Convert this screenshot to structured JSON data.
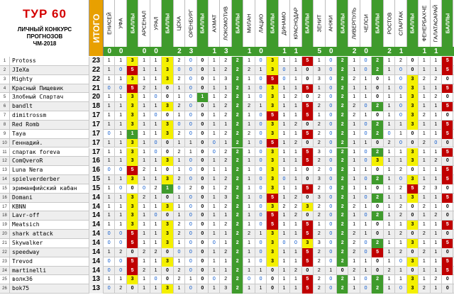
{
  "title": {
    "line1": "ТУР 60",
    "line2": "ЛИЧНЫЙ КОНКУРС",
    "line3": "ПРОГНОЗОВ",
    "line4": "ЧМ-2018"
  },
  "total_header": "ИТОГО",
  "columns": [
    {
      "label": "ЕНИСЕЙ",
      "type": "team"
    },
    {
      "label": "УФА",
      "type": "team"
    },
    {
      "label": "БАЛЛЫ",
      "type": "points"
    },
    {
      "label": "АРСЕНАЛ",
      "type": "team"
    },
    {
      "label": "УРАЛ",
      "type": "team"
    },
    {
      "label": "БАЛЛЫ",
      "type": "points"
    },
    {
      "label": "ЦСКА",
      "type": "team"
    },
    {
      "label": "ОРЕНБУРГ",
      "type": "team"
    },
    {
      "label": "БАЛЛЫ",
      "type": "points"
    },
    {
      "label": "АХМАТ",
      "type": "team"
    },
    {
      "label": "ЛОКОМОТИВ",
      "type": "team"
    },
    {
      "label": "БАЛЛЫ",
      "type": "points"
    },
    {
      "label": "МИЛАН",
      "type": "team"
    },
    {
      "label": "ЛАЦИО",
      "type": "team"
    },
    {
      "label": "БАЛЛЫ",
      "type": "points"
    },
    {
      "label": "ДИНАМО",
      "type": "team"
    },
    {
      "label": "КРАСНОДАР",
      "type": "team"
    },
    {
      "label": "БАЛЛЫ",
      "type": "points"
    },
    {
      "label": "ЗЕНИТ",
      "type": "team"
    },
    {
      "label": "АНЖИ",
      "type": "team"
    },
    {
      "label": "БАЛЛЫ",
      "type": "points"
    },
    {
      "label": "ЛИВЕРПУЛЬ",
      "type": "team"
    },
    {
      "label": "ЧЕЛСИ",
      "type": "team"
    },
    {
      "label": "БАЛЛЫ",
      "type": "points"
    },
    {
      "label": "РОСТОВ",
      "type": "team"
    },
    {
      "label": "СПАРТАК",
      "type": "team"
    },
    {
      "label": "БАЛЛЫ",
      "type": "points"
    },
    {
      "label": "ФЕНЕРБАХЧЕ",
      "type": "team"
    },
    {
      "label": "ГАЛАТАСАРАЙ",
      "type": "team"
    },
    {
      "label": "БАЛЛЫ",
      "type": "points"
    }
  ],
  "results": [
    "0",
    "0",
    "",
    "0",
    "0",
    "",
    "2",
    "3",
    "",
    "1",
    "3",
    "",
    "1",
    "0",
    "",
    "1",
    "1",
    "",
    "5",
    "0",
    "",
    "2",
    "0",
    "",
    "2",
    "1",
    "",
    "1",
    "1",
    ""
  ],
  "rows": [
    {
      "n": "1",
      "name": "Protoss",
      "total": "23",
      "cells": [
        "1",
        "1",
        "3",
        "1",
        "1",
        "3",
        "2",
        "0",
        "0",
        "1",
        "2",
        "2",
        "1",
        "0",
        "3",
        "1",
        "1",
        "5",
        "1",
        "0",
        "2",
        "1",
        "0",
        "2",
        "1",
        "2",
        "0",
        "1",
        "1",
        "5"
      ]
    },
    {
      "n": "2",
      "name": "JIeXa",
      "total": "22",
      "cells": [
        "1",
        "0",
        "5",
        "1",
        "1",
        "3",
        "0",
        "0",
        "0",
        "1",
        "2",
        "2",
        "2",
        "1",
        "3",
        "0",
        "1",
        "0",
        "3",
        "0",
        "2",
        "1",
        "0",
        "2",
        "1",
        "0",
        "0",
        "1",
        "1",
        "5"
      ]
    },
    {
      "n": "3",
      "name": "Mighty",
      "total": "22",
      "cells": [
        "1",
        "1",
        "3",
        "1",
        "1",
        "3",
        "2",
        "0",
        "0",
        "1",
        "3",
        "2",
        "1",
        "0",
        "5",
        "0",
        "1",
        "0",
        "3",
        "0",
        "2",
        "2",
        "1",
        "0",
        "1",
        "0",
        "3",
        "2",
        "2",
        "0"
      ]
    },
    {
      "n": "4",
      "name": "Красный Пищевик",
      "total": "21",
      "cells": [
        "0",
        "0",
        "5",
        "2",
        "1",
        "0",
        "1",
        "0",
        "0",
        "1",
        "1",
        "2",
        "1",
        "0",
        "3",
        "1",
        "1",
        "5",
        "1",
        "0",
        "2",
        "1",
        "1",
        "0",
        "1",
        "0",
        "3",
        "1",
        "1",
        "5"
      ]
    },
    {
      "n": "5",
      "name": "Злобный Спартач",
      "total": "20",
      "cells": [
        "1",
        "1",
        "3",
        "1",
        "0",
        "0",
        "1",
        "0",
        "1",
        "1",
        "2",
        "2",
        "1",
        "0",
        "3",
        "1",
        "2",
        "0",
        "2",
        "0",
        "2",
        "1",
        "1",
        "0",
        "1",
        "1",
        "3",
        "1",
        "2",
        "0"
      ]
    },
    {
      "n": "6",
      "name": "bandlt",
      "total": "18",
      "cells": [
        "1",
        "1",
        "3",
        "1",
        "1",
        "3",
        "2",
        "0",
        "0",
        "1",
        "2",
        "2",
        "2",
        "1",
        "3",
        "1",
        "1",
        "5",
        "2",
        "0",
        "2",
        "2",
        "0",
        "2",
        "1",
        "0",
        "3",
        "1",
        "1",
        "5"
      ]
    },
    {
      "n": "7",
      "name": "dimitrossm",
      "total": "17",
      "cells": [
        "1",
        "1",
        "3",
        "1",
        "0",
        "0",
        "1",
        "0",
        "0",
        "1",
        "2",
        "2",
        "1",
        "0",
        "5",
        "1",
        "1",
        "5",
        "1",
        "0",
        "2",
        "2",
        "1",
        "0",
        "1",
        "0",
        "3",
        "2",
        "1",
        "0"
      ]
    },
    {
      "n": "8",
      "name": "Red Romb",
      "total": "17",
      "cells": [
        "1",
        "1",
        "3",
        "1",
        "1",
        "3",
        "0",
        "0",
        "0",
        "1",
        "1",
        "2",
        "1",
        "0",
        "3",
        "1",
        "2",
        "0",
        "2",
        "0",
        "2",
        "1",
        "0",
        "2",
        "1",
        "1",
        "3",
        "1",
        "1",
        "5"
      ]
    },
    {
      "n": "9",
      "name": "Taya",
      "total": "17",
      "cells": [
        "0",
        "1",
        "1",
        "1",
        "1",
        "3",
        "2",
        "0",
        "0",
        "1",
        "2",
        "2",
        "2",
        "0",
        "3",
        "1",
        "1",
        "5",
        "2",
        "0",
        "2",
        "1",
        "0",
        "2",
        "0",
        "1",
        "0",
        "1",
        "1",
        "5"
      ]
    },
    {
      "n": "10",
      "name": "Геннадий.",
      "total": "17",
      "cells": [
        "1",
        "1",
        "3",
        "1",
        "0",
        "0",
        "1",
        "1",
        "0",
        "0",
        "1",
        "2",
        "1",
        "0",
        "5",
        "1",
        "2",
        "0",
        "2",
        "0",
        "2",
        "1",
        "1",
        "0",
        "2",
        "0",
        "0",
        "2",
        "0",
        "0"
      ]
    },
    {
      "n": "11",
      "name": "спартак foreva",
      "total": "17",
      "cells": [
        "1",
        "1",
        "3",
        "1",
        "0",
        "0",
        "2",
        "1",
        "0",
        "0",
        "2",
        "2",
        "1",
        "0",
        "3",
        "1",
        "1",
        "5",
        "3",
        "0",
        "2",
        "1",
        "0",
        "2",
        "1",
        "1",
        "3",
        "1",
        "1",
        "5"
      ]
    },
    {
      "n": "12",
      "name": "ComQveroR",
      "total": "16",
      "cells": [
        "1",
        "1",
        "3",
        "1",
        "1",
        "3",
        "1",
        "0",
        "0",
        "1",
        "2",
        "2",
        "1",
        "0",
        "3",
        "1",
        "1",
        "5",
        "2",
        "0",
        "2",
        "1",
        "0",
        "3",
        "1",
        "1",
        "3",
        "1",
        "2",
        "0"
      ]
    },
    {
      "n": "13",
      "name": "Luna Nera",
      "total": "16",
      "cells": [
        "0",
        "0",
        "5",
        "2",
        "1",
        "0",
        "1",
        "0",
        "0",
        "1",
        "1",
        "2",
        "1",
        "0",
        "3",
        "1",
        "1",
        "0",
        "2",
        "0",
        "2",
        "1",
        "1",
        "0",
        "1",
        "2",
        "0",
        "1",
        "1",
        "5"
      ]
    },
    {
      "n": "14",
      "name": "spielverderber",
      "total": "15",
      "cells": [
        "1",
        "1",
        "3",
        "1",
        "1",
        "3",
        "2",
        "0",
        "0",
        "1",
        "2",
        "2",
        "1",
        "0",
        "3",
        "0",
        "1",
        "0",
        "3",
        "0",
        "2",
        "1",
        "0",
        "2",
        "1",
        "0",
        "3",
        "1",
        "1",
        "5"
      ]
    },
    {
      "n": "15",
      "name": "эриманфийский кабан",
      "total": "15",
      "cells": [
        "1",
        "0",
        "0",
        "0",
        "2",
        "1",
        "0",
        "2",
        "0",
        "1",
        "2",
        "2",
        "1",
        "0",
        "3",
        "1",
        "1",
        "5",
        "2",
        "0",
        "2",
        "1",
        "1",
        "0",
        "1",
        "2",
        "5",
        "2",
        "3",
        "0"
      ]
    },
    {
      "n": "16",
      "name": "Domani",
      "total": "14",
      "cells": [
        "1",
        "1",
        "3",
        "2",
        "1",
        "0",
        "1",
        "0",
        "0",
        "1",
        "3",
        "2",
        "1",
        "0",
        "5",
        "1",
        "2",
        "0",
        "3",
        "0",
        "2",
        "1",
        "0",
        "2",
        "1",
        "1",
        "3",
        "1",
        "1",
        "5"
      ]
    },
    {
      "n": "17",
      "name": "KBNN",
      "total": "14",
      "cells": [
        "1",
        "1",
        "3",
        "1",
        "1",
        "3",
        "1",
        "0",
        "0",
        "1",
        "2",
        "2",
        "1",
        "0",
        "3",
        "2",
        "2",
        "3",
        "2",
        "0",
        "2",
        "2",
        "1",
        "0",
        "1",
        "2",
        "0",
        "2",
        "1",
        "0"
      ]
    },
    {
      "n": "18",
      "name": "Lavr-off",
      "total": "14",
      "cells": [
        "1",
        "1",
        "3",
        "1",
        "0",
        "0",
        "1",
        "0",
        "0",
        "1",
        "1",
        "2",
        "1",
        "0",
        "5",
        "1",
        "2",
        "0",
        "2",
        "0",
        "2",
        "1",
        "0",
        "2",
        "1",
        "2",
        "0",
        "1",
        "2",
        "0"
      ]
    },
    {
      "n": "19",
      "name": "Meatsich",
      "total": "14",
      "cells": [
        "1",
        "1",
        "3",
        "1",
        "1",
        "3",
        "2",
        "0",
        "0",
        "1",
        "2",
        "2",
        "1",
        "0",
        "5",
        "1",
        "1",
        "5",
        "1",
        "0",
        "2",
        "1",
        "1",
        "0",
        "1",
        "1",
        "3",
        "1",
        "1",
        "5"
      ]
    },
    {
      "n": "20",
      "name": "shark attack",
      "total": "14",
      "cells": [
        "0",
        "0",
        "5",
        "1",
        "1",
        "3",
        "2",
        "0",
        "0",
        "1",
        "1",
        "2",
        "2",
        "1",
        "3",
        "1",
        "1",
        "5",
        "2",
        "0",
        "2",
        "2",
        "1",
        "0",
        "1",
        "2",
        "0",
        "2",
        "1",
        "0"
      ]
    },
    {
      "n": "21",
      "name": "Skywalker",
      "total": "14",
      "cells": [
        "0",
        "0",
        "5",
        "1",
        "1",
        "3",
        "1",
        "0",
        "0",
        "0",
        "1",
        "2",
        "1",
        "0",
        "3",
        "0",
        "0",
        "3",
        "3",
        "0",
        "2",
        "2",
        "0",
        "2",
        "1",
        "1",
        "3",
        "1",
        "1",
        "5"
      ]
    },
    {
      "n": "22",
      "name": "speedway",
      "total": "14",
      "cells": [
        "1",
        "2",
        "0",
        "2",
        "2",
        "0",
        "0",
        "0",
        "0",
        "1",
        "2",
        "2",
        "1",
        "0",
        "3",
        "1",
        "1",
        "5",
        "2",
        "0",
        "2",
        "2",
        "0",
        "5",
        "1",
        "2",
        "0",
        "2",
        "1",
        "0"
      ]
    },
    {
      "n": "23",
      "name": "Trevod",
      "total": "14",
      "cells": [
        "0",
        "0",
        "5",
        "1",
        "1",
        "3",
        "1",
        "0",
        "0",
        "1",
        "1",
        "2",
        "1",
        "0",
        "3",
        "1",
        "1",
        "5",
        "2",
        "0",
        "2",
        "1",
        "1",
        "0",
        "1",
        "0",
        "3",
        "1",
        "1",
        "5"
      ]
    },
    {
      "n": "24",
      "name": "martinelli",
      "total": "14",
      "cells": [
        "0",
        "0",
        "5",
        "2",
        "1",
        "0",
        "2",
        "0",
        "0",
        "1",
        "1",
        "2",
        "1",
        "1",
        "0",
        "1",
        "2",
        "0",
        "2",
        "1",
        "0",
        "2",
        "1",
        "0",
        "2",
        "1",
        "0",
        "1",
        "1",
        "5"
      ]
    },
    {
      "n": "25",
      "name": "волк36",
      "total": "13",
      "cells": [
        "1",
        "1",
        "3",
        "1",
        "0",
        "0",
        "2",
        "1",
        "0",
        "0",
        "2",
        "2",
        "0",
        "0",
        "0",
        "1",
        "1",
        "5",
        "2",
        "0",
        "2",
        "1",
        "0",
        "2",
        "1",
        "1",
        "3",
        "1",
        "2",
        "0"
      ]
    },
    {
      "n": "26",
      "name": "bok75",
      "total": "13",
      "cells": [
        "0",
        "2",
        "0",
        "1",
        "1",
        "3",
        "1",
        "0",
        "0",
        "1",
        "3",
        "2",
        "1",
        "1",
        "0",
        "1",
        "1",
        "5",
        "2",
        "0",
        "2",
        "1",
        "0",
        "2",
        "1",
        "0",
        "3",
        "2",
        "1",
        "0"
      ]
    }
  ],
  "colors": {
    "points_green": "#3f9b2c",
    "exact_yellow": "#f4f000",
    "bonus_red": "#c00000",
    "total_header_orange": "#e8a000"
  }
}
